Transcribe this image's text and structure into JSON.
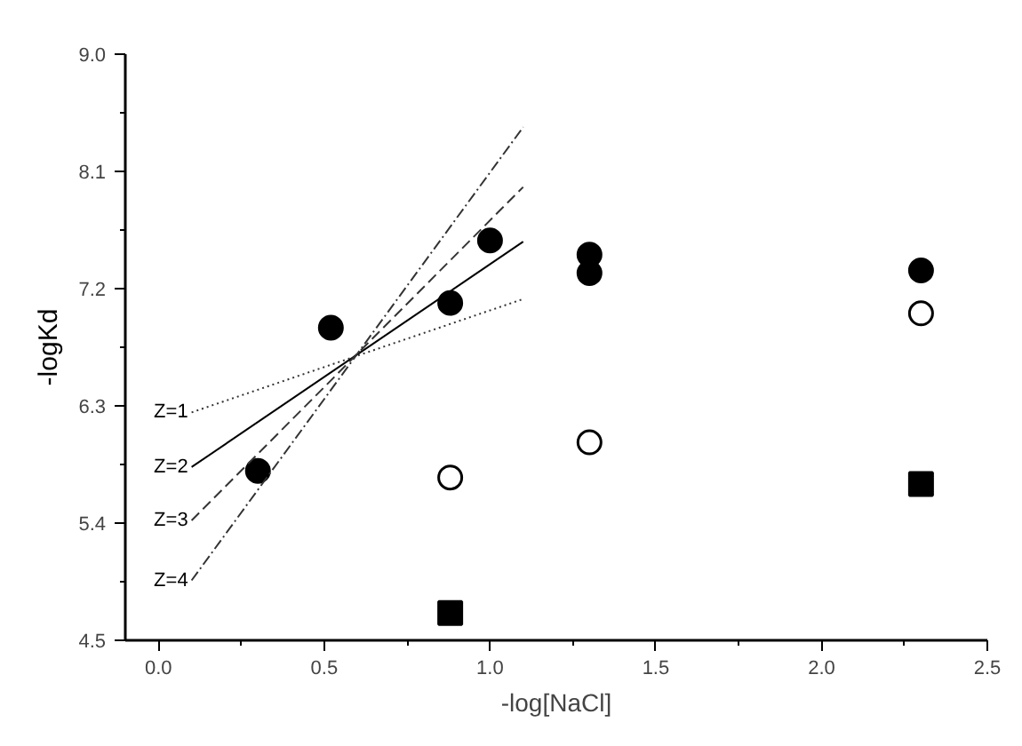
{
  "chart_data": {
    "type": "scatter",
    "xlabel": "-log[NaCl]",
    "ylabel": "-logKd",
    "xlim": [
      -0.1,
      2.5
    ],
    "ylim": [
      4.5,
      9.0
    ],
    "xticks": [
      {
        "value": 0.0,
        "label": "0.0"
      },
      0.5,
      {
        "value": 1.0,
        "label": "1.0"
      },
      1.5,
      {
        "value": 2.0,
        "label": "2.0"
      },
      2.5
    ],
    "yticks": [
      4.5,
      5.4,
      6.3,
      7.2,
      8.1,
      {
        "value": 9.0,
        "label": "9.0"
      }
    ],
    "grid": false,
    "legend": false,
    "series": [
      {
        "marker": "circle",
        "color": "#000000",
        "x": [
          0.3,
          0.52,
          0.88,
          1.0,
          1.3,
          1.3,
          2.3
        ],
        "values": [
          5.8,
          6.9,
          7.09,
          7.57,
          7.46,
          7.32,
          7.34
        ]
      },
      {
        "marker": "circle_open",
        "color": "#000000",
        "x": [
          0.88,
          1.3,
          2.3
        ],
        "values": [
          5.75,
          6.02,
          7.01
        ]
      },
      {
        "marker": "square",
        "color": "#000000",
        "x": [
          0.88,
          2.3
        ],
        "values": [
          4.71,
          5.7
        ]
      },
      {
        "type": "line",
        "name": "Z=1",
        "line_style": "dotted",
        "color": "#333333",
        "x": [
          0.1,
          1.1
        ],
        "values": [
          6.25,
          7.12
        ]
      },
      {
        "type": "line",
        "name": "Z=2",
        "line_style": "solid",
        "color": "#000000",
        "x": [
          0.1,
          1.1
        ],
        "values": [
          5.83,
          7.56
        ]
      },
      {
        "type": "line",
        "name": "Z=3",
        "line_style": "dashed",
        "color": "#333333",
        "x": [
          0.1,
          1.1
        ],
        "values": [
          5.42,
          7.98
        ]
      },
      {
        "type": "line",
        "name": "Z=4",
        "line_style": "dashdot",
        "color": "#333333",
        "x": [
          0.1,
          1.1
        ],
        "values": [
          4.96,
          8.44
        ]
      }
    ]
  }
}
